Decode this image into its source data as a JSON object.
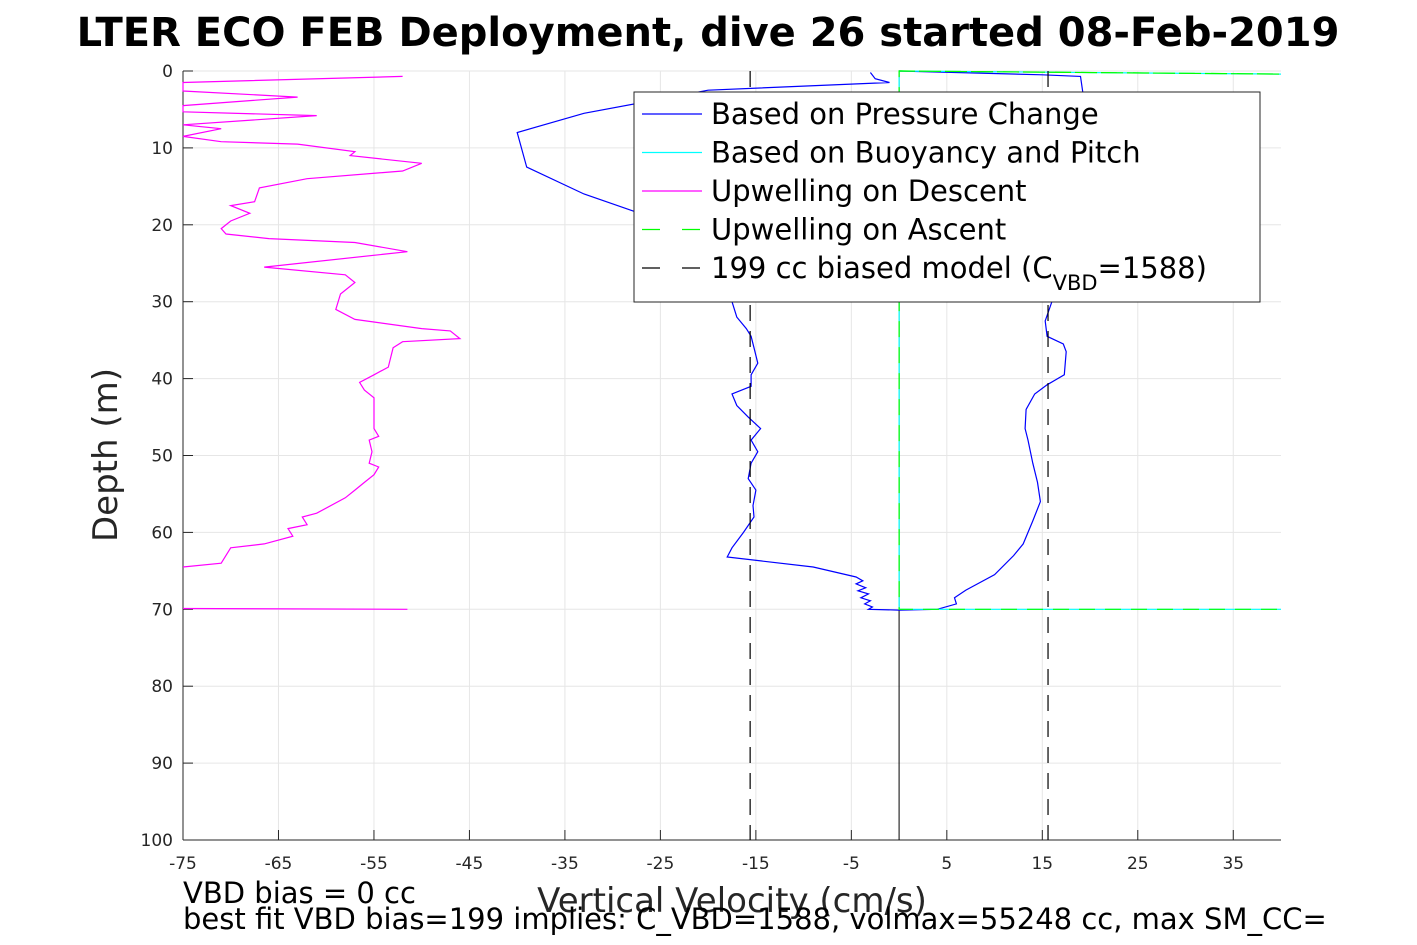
{
  "chart_data": {
    "type": "line",
    "title": "LTER ECO FEB Deployment, dive 26 started 08-Feb-2019",
    "xlabel": "Vertical Velocity (cm/s)",
    "ylabel": "Depth (m)",
    "xlim": [
      -75,
      40
    ],
    "ylim": [
      0,
      100
    ],
    "y_reversed": true,
    "grid": true,
    "legend_position": "top-right",
    "xticks": [
      -75,
      -65,
      -55,
      -45,
      -35,
      -25,
      -15,
      -5,
      5,
      15,
      25,
      35
    ],
    "yticks": [
      0,
      10,
      20,
      30,
      40,
      50,
      60,
      70,
      80,
      90,
      100
    ],
    "vline_at_zero": true,
    "series": [
      {
        "name": "Based on Pressure Change",
        "color": "#0000ff",
        "style": "solid",
        "points": [
          [
            -3,
            0.2
          ],
          [
            -2.5,
            1.0
          ],
          [
            -1,
            1.5
          ],
          [
            -20,
            2.5
          ],
          [
            -33,
            5.5
          ],
          [
            -40,
            8
          ],
          [
            -39,
            12.5
          ],
          [
            -33,
            16
          ],
          [
            -26,
            19
          ],
          [
            -24,
            21
          ],
          [
            -20,
            24
          ],
          [
            -18,
            27
          ],
          [
            -17.5,
            30
          ],
          [
            -17,
            32
          ],
          [
            -16,
            33.5
          ],
          [
            -15.5,
            34.5
          ],
          [
            -15.2,
            36
          ],
          [
            -14.8,
            38
          ],
          [
            -15.5,
            39.5
          ],
          [
            -15.5,
            41
          ],
          [
            -17.5,
            42
          ],
          [
            -17.0,
            43.5
          ],
          [
            -15.8,
            45
          ],
          [
            -14.5,
            46.5
          ],
          [
            -15.5,
            48
          ],
          [
            -14.8,
            49.5
          ],
          [
            -15.5,
            51
          ],
          [
            -15.8,
            53
          ],
          [
            -15.0,
            54.5
          ],
          [
            -15.3,
            56.5
          ],
          [
            -15.2,
            58
          ],
          [
            -16.3,
            60
          ],
          [
            -17.5,
            62
          ],
          [
            -18,
            63.2
          ],
          [
            -9,
            64.5
          ],
          [
            -4.5,
            65.8
          ],
          [
            -3.8,
            66.3
          ],
          [
            -4.5,
            66.7
          ],
          [
            -3.5,
            67.2
          ],
          [
            -4.3,
            67.6
          ],
          [
            -3.2,
            68
          ],
          [
            -4.0,
            68.5
          ],
          [
            -3.0,
            68.9
          ],
          [
            -3.6,
            69.3
          ],
          [
            -2.8,
            69.7
          ],
          [
            -3.2,
            70
          ],
          [
            0,
            70.1
          ],
          [
            4,
            70
          ],
          [
            6,
            69.3
          ],
          [
            5.8,
            68.5
          ],
          [
            7,
            67.5
          ],
          [
            10,
            65.5
          ],
          [
            12,
            63
          ],
          [
            13,
            61.5
          ],
          [
            14,
            58.5
          ],
          [
            14.8,
            56
          ],
          [
            14.5,
            53.5
          ],
          [
            14,
            51
          ],
          [
            13.5,
            48
          ],
          [
            13.2,
            46.5
          ],
          [
            13.3,
            44
          ],
          [
            14.2,
            42
          ],
          [
            15.5,
            40.8
          ],
          [
            17.3,
            39.5
          ],
          [
            17.5,
            36.5
          ],
          [
            17.2,
            35.5
          ],
          [
            15.5,
            34.5
          ],
          [
            15.3,
            32.5
          ],
          [
            16,
            30
          ],
          [
            17,
            27
          ],
          [
            18,
            23
          ],
          [
            19,
            19
          ],
          [
            19.5,
            15
          ],
          [
            19.5,
            10
          ],
          [
            19.5,
            5
          ],
          [
            19,
            0.7
          ],
          [
            15,
            0.5
          ],
          [
            0,
            0
          ]
        ]
      },
      {
        "name": "Based on Buoyancy and Pitch",
        "color": "#00ffff",
        "style": "solid",
        "points": [
          [
            0,
            0
          ],
          [
            0,
            70
          ],
          [
            40,
            70
          ],
          [
            0,
            70
          ],
          [
            0,
            0
          ],
          [
            40,
            0.4
          ]
        ]
      },
      {
        "name": "Upwelling on Descent",
        "color": "#ff00ff",
        "style": "solid",
        "points": [
          [
            -52,
            0.7
          ],
          [
            -75,
            1.5
          ],
          [
            -75,
            2.6
          ],
          [
            -63,
            3.4
          ],
          [
            -75,
            4.5
          ],
          [
            -75,
            5.3
          ],
          [
            -61,
            5.8
          ],
          [
            -75,
            7.0
          ],
          [
            -71,
            7.5
          ],
          [
            -75,
            8.5
          ],
          [
            -71,
            9.2
          ],
          [
            -63,
            9.5
          ],
          [
            -57,
            10.5
          ],
          [
            -57.5,
            11
          ],
          [
            -50,
            12
          ],
          [
            -52,
            13
          ],
          [
            -62,
            14
          ],
          [
            -67,
            15.2
          ],
          [
            -67.5,
            17
          ],
          [
            -70,
            17.5
          ],
          [
            -68,
            18.5
          ],
          [
            -70,
            19.5
          ],
          [
            -71,
            20.5
          ],
          [
            -70.5,
            21.2
          ],
          [
            -66,
            21.8
          ],
          [
            -57,
            22.3
          ],
          [
            -51.5,
            23.5
          ],
          [
            -66.5,
            25.5
          ],
          [
            -58,
            26.5
          ],
          [
            -57,
            27.5
          ],
          [
            -58.5,
            29
          ],
          [
            -59,
            31
          ],
          [
            -57,
            32.3
          ],
          [
            -50,
            33.5
          ],
          [
            -47,
            33.8
          ],
          [
            -46,
            34.8
          ],
          [
            -52,
            35.2
          ],
          [
            -53,
            36
          ],
          [
            -53.5,
            38.5
          ],
          [
            -55,
            39.5
          ],
          [
            -56.5,
            40.5
          ],
          [
            -56,
            41.5
          ],
          [
            -55,
            42.5
          ],
          [
            -55,
            45
          ],
          [
            -55,
            46.5
          ],
          [
            -54.5,
            47.5
          ],
          [
            -55.5,
            48
          ],
          [
            -55.2,
            49.5
          ],
          [
            -55.5,
            51
          ],
          [
            -54.5,
            51.5
          ],
          [
            -55,
            52.5
          ],
          [
            -56,
            53.5
          ],
          [
            -57,
            54.5
          ],
          [
            -58,
            55.5
          ],
          [
            -61,
            57.5
          ],
          [
            -62.5,
            58
          ],
          [
            -62,
            59
          ],
          [
            -64,
            59.5
          ],
          [
            -63.5,
            60.5
          ],
          [
            -66.5,
            61.5
          ],
          [
            -70,
            62
          ],
          [
            -71,
            64
          ],
          [
            -75,
            64.5
          ]
        ],
        "extra_segment": [
          [
            -75,
            69.9
          ],
          [
            -51.5,
            70
          ]
        ]
      },
      {
        "name": "Upwelling on Ascent",
        "color": "#00ff00",
        "style": "dashed",
        "points": [
          [
            0,
            0
          ],
          [
            40,
            0.4
          ],
          [
            0,
            0
          ],
          [
            0,
            70
          ],
          [
            40,
            70
          ]
        ]
      },
      {
        "name": "199 cc biased model (C_VBD=1588)",
        "legend_label_prefix": "199 cc biased model (C",
        "legend_label_sub": "VBD",
        "legend_label_suffix": "=1588)",
        "color": "#000000",
        "style": "dashed",
        "vertical_lines": [
          {
            "x": -15.6,
            "y": [
              0,
              100
            ]
          },
          {
            "x": 15.6,
            "y": [
              0,
              100
            ]
          }
        ]
      }
    ],
    "annotations": [
      "VBD bias = 0 cc",
      "best fit VBD bias=199 implies: C_VBD=1588, volmax=55248 cc, max SM_CC="
    ]
  }
}
